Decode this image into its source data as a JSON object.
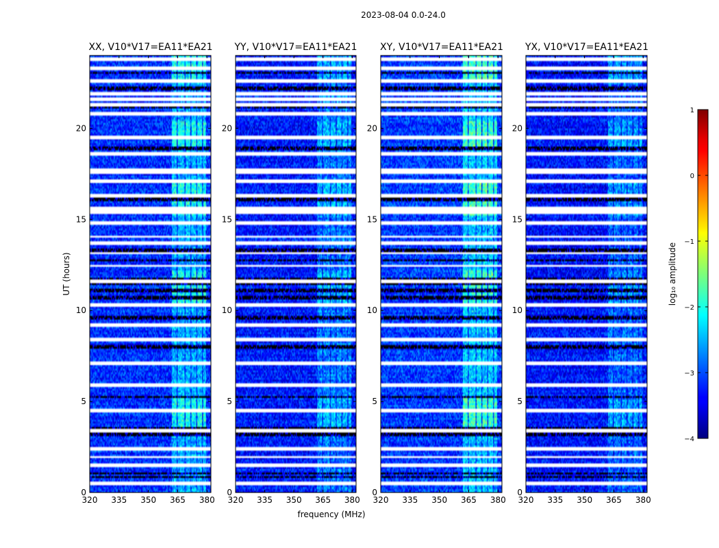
{
  "figure": {
    "suptitle": "2023-08-04 0.0-24.0",
    "ylabel": "UT (hours)",
    "xlabel": "frequency (MHz)"
  },
  "chart_data": {
    "type": "heatmap",
    "x": {
      "min": 320,
      "max": 382,
      "ticks": [
        320,
        335,
        350,
        365,
        380
      ],
      "tick_labels": [
        "320",
        "335",
        "350",
        "365",
        "380"
      ]
    },
    "y": {
      "min": 0,
      "max": 24,
      "ticks": [
        0,
        5,
        10,
        15,
        20
      ],
      "tick_labels": [
        "0",
        "5",
        "10",
        "15",
        "20"
      ]
    },
    "panels": [
      {
        "title": "XX, V10*V17=EA11*EA21",
        "level": -3.15,
        "burst_strength": 0.85
      },
      {
        "title": "YY, V10*V17=EA11*EA21",
        "level": -3.25,
        "burst_strength": 0.6
      },
      {
        "title": "XY, V10*V17=EA11*EA21",
        "level": -3.1,
        "burst_strength": 1.0
      },
      {
        "title": "YX, V10*V17=EA11*EA21",
        "level": -3.3,
        "burst_strength": 0.5
      }
    ],
    "rfi_band_mhz": [
      [
        362,
        364.5
      ],
      [
        364.8,
        368.5
      ],
      [
        369,
        371.5
      ],
      [
        372,
        374.5
      ],
      [
        375,
        377.5
      ],
      [
        378,
        379.5
      ]
    ],
    "flagged_hours_white": [
      0.5,
      1.5,
      1.95,
      2.4,
      3.4,
      4.5,
      5.9,
      7.1,
      8.4,
      9.2,
      10.3,
      11.6,
      12.45,
      13.15,
      13.7,
      14.05,
      14.8,
      15.4,
      15.6,
      16.3,
      17.1,
      17.6,
      17.75,
      18.6,
      19.5,
      20.8,
      21.3,
      21.6,
      21.9,
      22.6,
      23.3,
      23.8
    ],
    "flagged_hours_black": [
      0.85,
      1.05,
      3.2,
      3.55,
      5.25,
      8.0,
      9.6,
      10.7,
      11.1,
      11.5,
      11.7,
      12.75,
      13.3,
      16.1,
      18.85,
      18.95,
      21.2,
      22.2,
      23.05
    ],
    "colorbar": {
      "label": "log₁₀ amplitude",
      "min": -4,
      "max": 1,
      "ticks": [
        1,
        0,
        -1,
        -2,
        -3,
        -4
      ],
      "tick_labels": [
        "1",
        "0",
        "−1",
        "−2",
        "−3",
        "−4"
      ]
    }
  }
}
